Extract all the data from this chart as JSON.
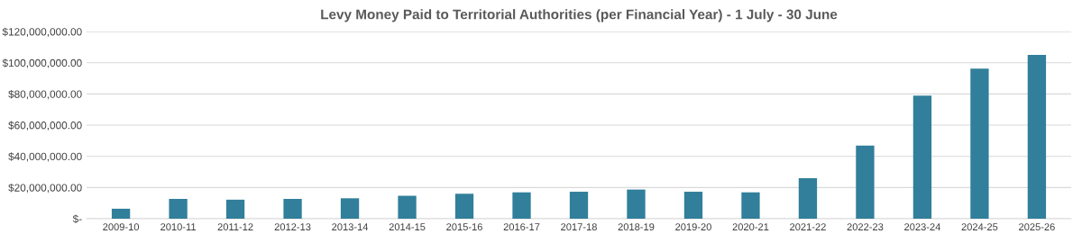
{
  "chart_data": {
    "type": "bar",
    "title": "Levy Money Paid to Territorial Authorities (per Financial Year) - 1 July - 30 June",
    "categories": [
      "2009-10",
      "2010-11",
      "2011-12",
      "2012-13",
      "2013-14",
      "2014-15",
      "2015-16",
      "2016-17",
      "2017-18",
      "2018-19",
      "2019-20",
      "2020-21",
      "2021-22",
      "2022-23",
      "2023-24",
      "2024-25",
      "2025-26"
    ],
    "values": [
      6400000,
      12700000,
      12200000,
      12700000,
      13100000,
      14700000,
      16000000,
      16900000,
      17300000,
      18700000,
      17300000,
      16900000,
      26000000,
      46900000,
      78900000,
      96200000,
      105100000
    ],
    "color": "#317f9b",
    "ylim": [
      0,
      120000000
    ],
    "yticks": [
      {
        "value": 0,
        "label": "$-"
      },
      {
        "value": 20000000,
        "label": "$20,000,000.00"
      },
      {
        "value": 40000000,
        "label": "$40,000,000.00"
      },
      {
        "value": 60000000,
        "label": "$60,000,000.00"
      },
      {
        "value": 80000000,
        "label": "$80,000,000.00"
      },
      {
        "value": 100000000,
        "label": "$100,000,000.00"
      },
      {
        "value": 120000000,
        "label": "$120,000,000.00"
      }
    ],
    "grid": "y"
  }
}
